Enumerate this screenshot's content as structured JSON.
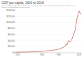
{
  "chart_data": {
    "type": "line",
    "title": "GDP per capita, 1820 to 2018",
    "subtitle": "GDP per capita adjusted for price changes over time (inflation) and price differences between countries – it is measured in international-$ in 2011 prices.",
    "x": [
      1820,
      1850,
      1870,
      1900,
      1913,
      1929,
      1938,
      1950,
      1955,
      1960,
      1965,
      1970,
      1974,
      1975,
      1980,
      1985,
      1990,
      1995,
      2000,
      2005,
      2008,
      2010,
      2012,
      2015,
      2018
    ],
    "series": [
      {
        "name": "GDP per capita",
        "color": "#c0504d",
        "values": [
          2000,
          2500,
          3000,
          4500,
          6000,
          8000,
          9000,
          12000,
          14000,
          16000,
          18000,
          22000,
          30000,
          26000,
          40000,
          36000,
          45000,
          60000,
          75000,
          110000,
          125000,
          130000,
          138000,
          130000,
          128000
        ]
      }
    ],
    "xlim": [
      1820,
      2018
    ],
    "xticks": [
      1820,
      1900,
      1950,
      2018
    ],
    "ylim": [
      0,
      140000
    ],
    "yticks": [
      {
        "value": 0,
        "label": "$0"
      },
      {
        "value": 20000,
        "label": "$20,000"
      },
      {
        "value": 40000,
        "label": "$40,000"
      },
      {
        "value": 60000,
        "label": "$60,000"
      },
      {
        "value": 80000,
        "label": "$80,000"
      },
      {
        "value": 100000,
        "label": "$100,000"
      },
      {
        "value": 120000,
        "label": "$120,000"
      },
      {
        "value": 140000,
        "label": "$140,000"
      }
    ],
    "grid": true
  }
}
